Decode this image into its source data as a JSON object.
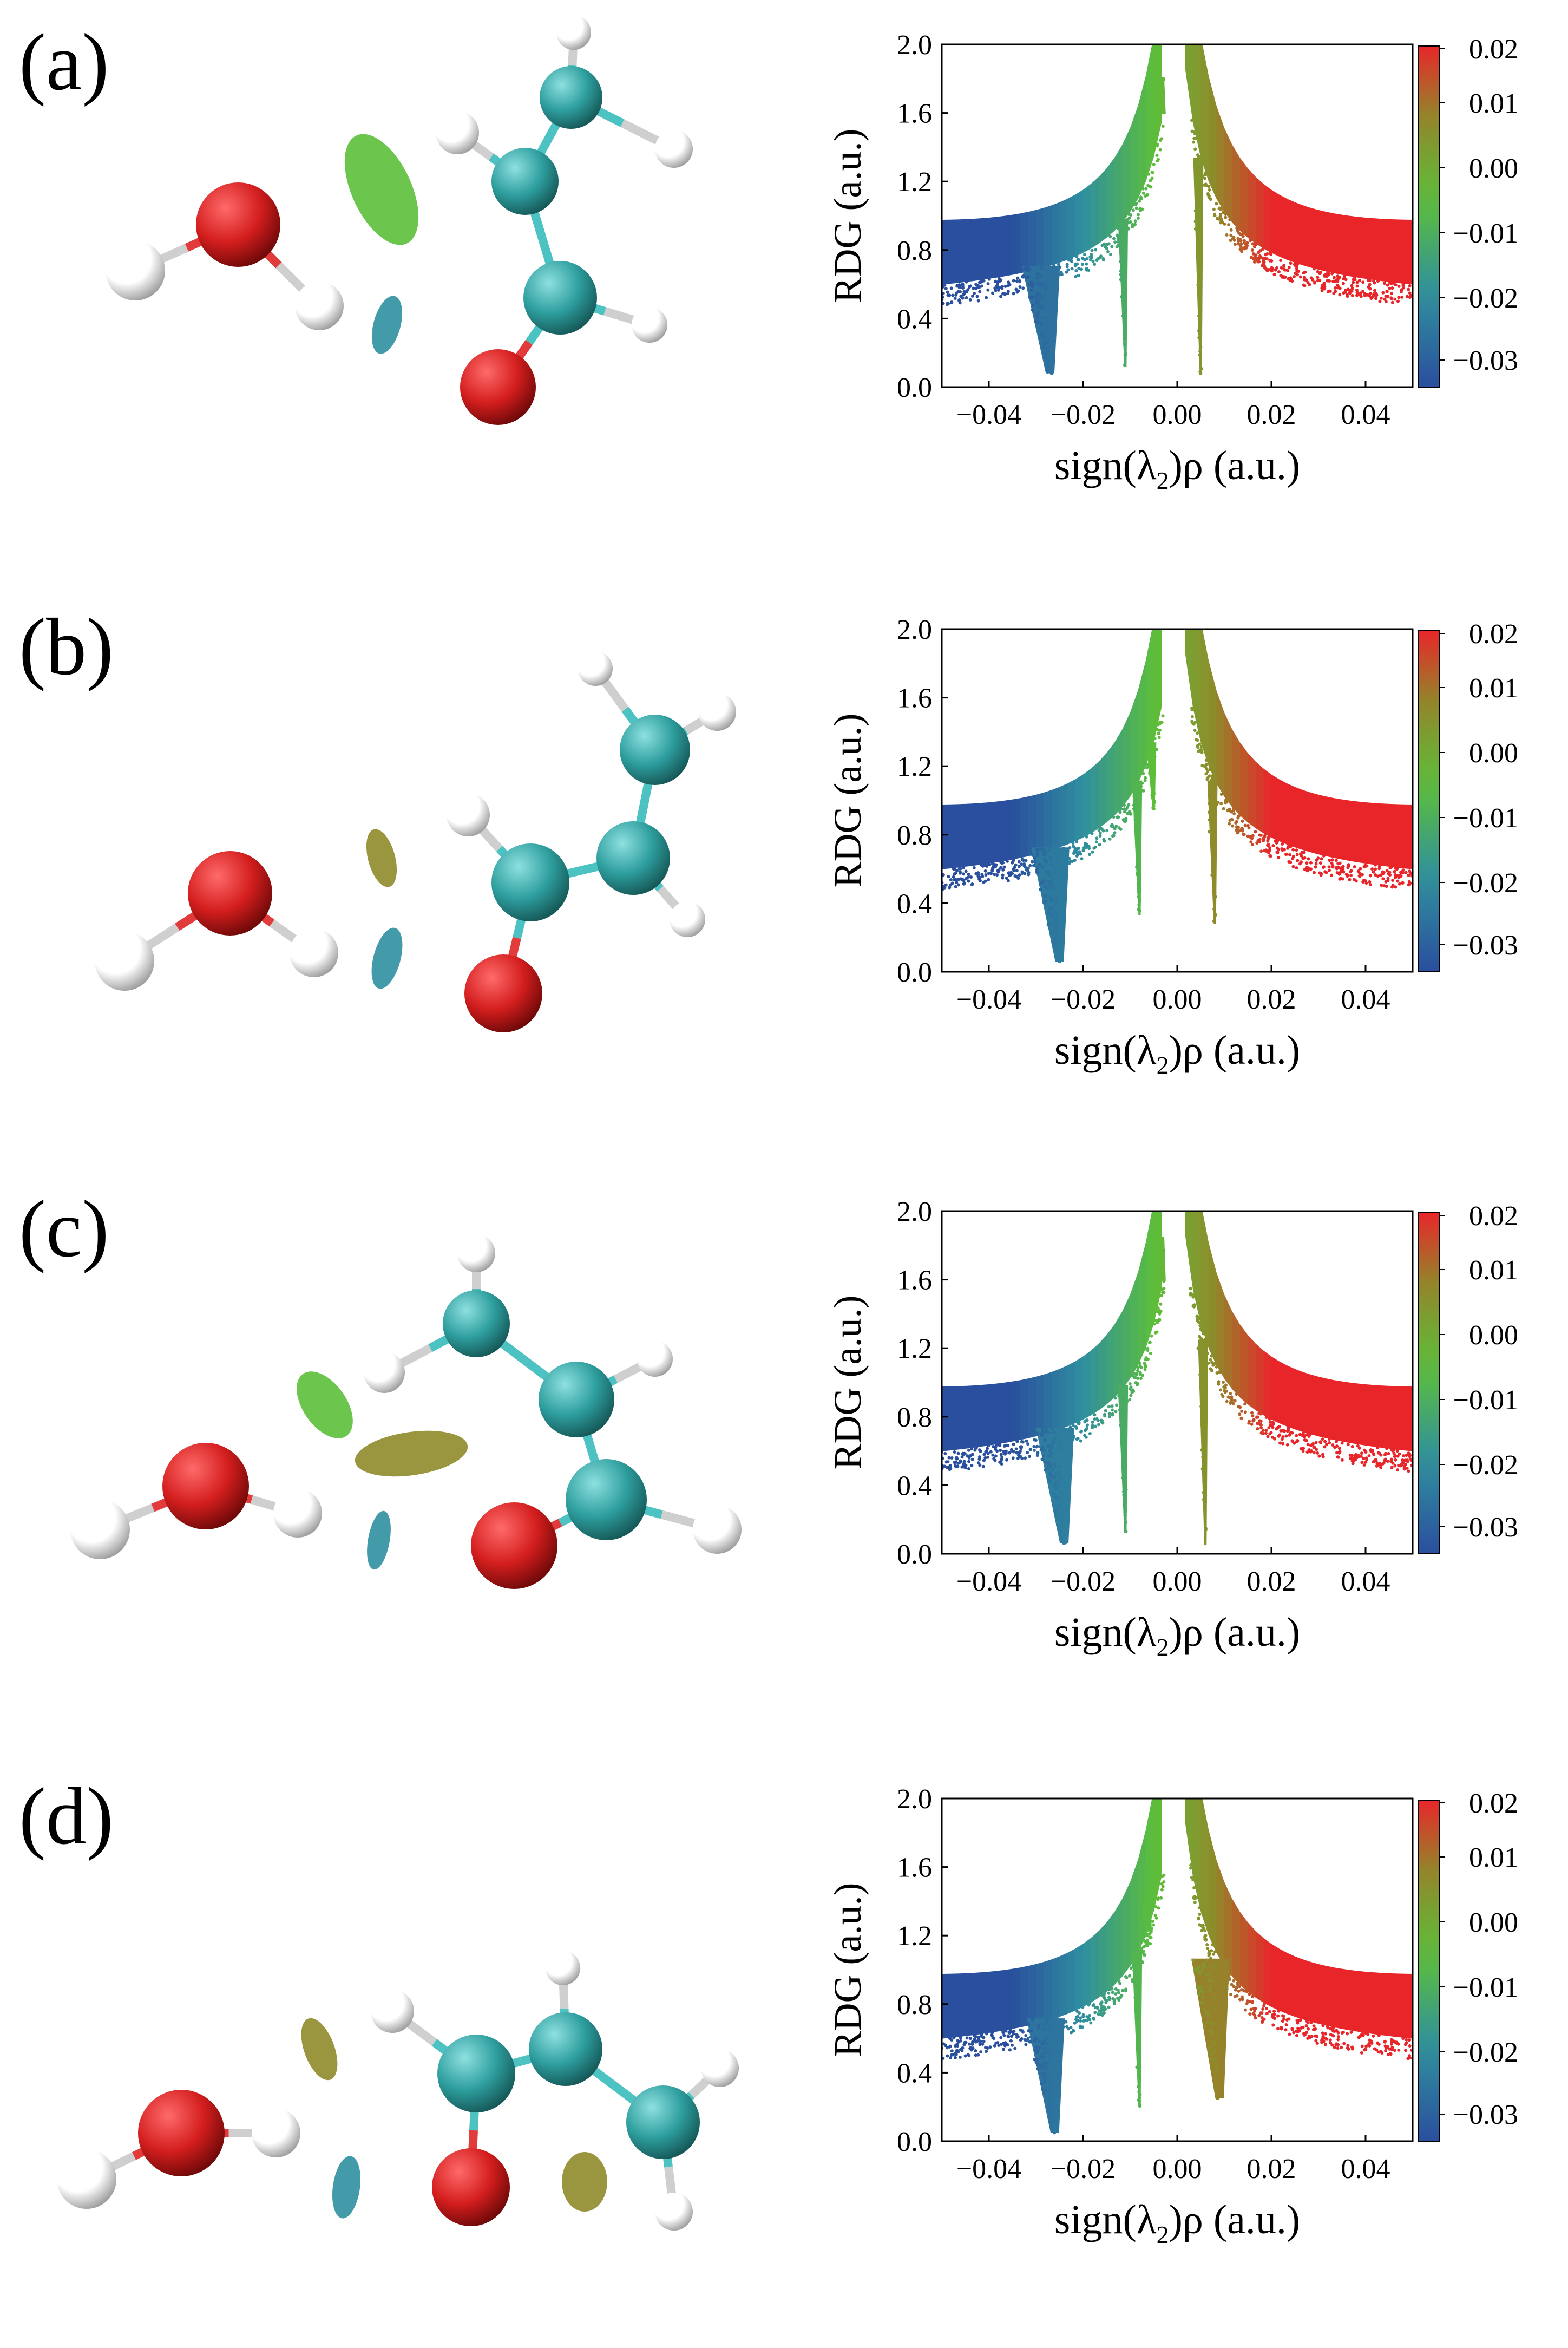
{
  "colors": {
    "oxygen": "#d41e1e",
    "hydrogen": "#f2f2f2",
    "carbon": "#2e9e9e",
    "bond_gray": "#cfcfcf",
    "bond_red": "#e23b3b",
    "bond_cyan": "#4cc2c2",
    "cmap_blue": "#2a4f9e",
    "cmap_cyan": "#2f8f9f",
    "cmap_green": "#5cbf3a",
    "cmap_olive": "#8f8a2a",
    "cmap_red": "#e8262a"
  },
  "colorbar": {
    "ticks": [
      "0.02",
      "0.01",
      "0.00",
      "−0.01",
      "−0.02",
      "−0.03"
    ],
    "min": -0.035,
    "max": 0.02
  },
  "panels": [
    {
      "label": "(a)",
      "molecule_icon": "water-acrolein-complex-a",
      "chart_data": {
        "type": "scatter",
        "xlabel_main": "sign(λ",
        "xlabel_sub": "2",
        "xlabel_tail": ")ρ (a.u.)",
        "ylabel": "RDG (a.u.)",
        "xlim": [
          -0.05,
          0.05
        ],
        "ylim": [
          0.0,
          2.0
        ],
        "xticks": [
          "−0.04",
          "−0.02",
          "0.00",
          "0.02",
          "0.04"
        ],
        "yticks": [
          "0.0",
          "0.4",
          "0.8",
          "1.2",
          "1.6",
          "2.0"
        ],
        "spikes": [
          {
            "x": -0.027,
            "y_min": 0.08,
            "kind": "fan"
          },
          {
            "x": -0.011,
            "y_min": 0.12,
            "kind": "narrow"
          },
          {
            "x": -0.003,
            "y_min": 1.8,
            "kind": "narrow"
          },
          {
            "x": 0.005,
            "y_min": 0.07,
            "kind": "narrow"
          }
        ]
      }
    },
    {
      "label": "(b)",
      "molecule_icon": "water-acrolein-complex-b",
      "chart_data": {
        "type": "scatter",
        "xlabel_main": "sign(λ",
        "xlabel_sub": "2",
        "xlabel_tail": ")ρ (a.u.)",
        "ylabel": "RDG (a.u.)",
        "xlim": [
          -0.05,
          0.05
        ],
        "ylim": [
          0.0,
          2.0
        ],
        "xticks": [
          "−0.04",
          "−0.02",
          "0.00",
          "0.02",
          "0.04"
        ],
        "yticks": [
          "0.0",
          "0.4",
          "0.8",
          "1.2",
          "1.6",
          "2.0"
        ],
        "spikes": [
          {
            "x": -0.025,
            "y_min": 0.06,
            "kind": "fan"
          },
          {
            "x": -0.008,
            "y_min": 0.33,
            "kind": "narrow"
          },
          {
            "x": -0.005,
            "y_min": 0.95,
            "kind": "narrow"
          },
          {
            "x": 0.008,
            "y_min": 0.28,
            "kind": "narrow"
          }
        ]
      }
    },
    {
      "label": "(c)",
      "molecule_icon": "water-acrolein-complex-c",
      "chart_data": {
        "type": "scatter",
        "xlabel_main": "sign(λ",
        "xlabel_sub": "2",
        "xlabel_tail": ")ρ (a.u.)",
        "ylabel": "RDG (a.u.)",
        "xlim": [
          -0.05,
          0.05
        ],
        "ylim": [
          0.0,
          2.0
        ],
        "xticks": [
          "−0.04",
          "−0.02",
          "0.00",
          "0.02",
          "0.04"
        ],
        "yticks": [
          "0.0",
          "0.4",
          "0.8",
          "1.2",
          "1.6",
          "2.0"
        ],
        "spikes": [
          {
            "x": -0.024,
            "y_min": 0.06,
            "kind": "fan"
          },
          {
            "x": -0.011,
            "y_min": 0.12,
            "kind": "narrow"
          },
          {
            "x": -0.003,
            "y_min": 1.85,
            "kind": "narrow"
          },
          {
            "x": 0.006,
            "y_min": 0.05,
            "kind": "narrow"
          }
        ]
      }
    },
    {
      "label": "(d)",
      "molecule_icon": "water-acrolein-complex-d",
      "chart_data": {
        "type": "scatter",
        "xlabel_main": "sign(λ",
        "xlabel_sub": "2",
        "xlabel_tail": ")ρ (a.u.)",
        "ylabel": "RDG (a.u.)",
        "xlim": [
          -0.05,
          0.05
        ],
        "ylim": [
          0.0,
          2.0
        ],
        "xticks": [
          "−0.04",
          "−0.02",
          "0.00",
          "0.02",
          "0.04"
        ],
        "yticks": [
          "0.0",
          "0.4",
          "0.8",
          "1.2",
          "1.6",
          "2.0"
        ],
        "spikes": [
          {
            "x": -0.026,
            "y_min": 0.05,
            "kind": "fan"
          },
          {
            "x": -0.008,
            "y_min": 0.2,
            "kind": "narrow"
          },
          {
            "x": -0.006,
            "y_min": 1.7,
            "kind": "narrow"
          },
          {
            "x": 0.009,
            "y_min": 0.25,
            "kind": "fan"
          }
        ]
      }
    }
  ]
}
